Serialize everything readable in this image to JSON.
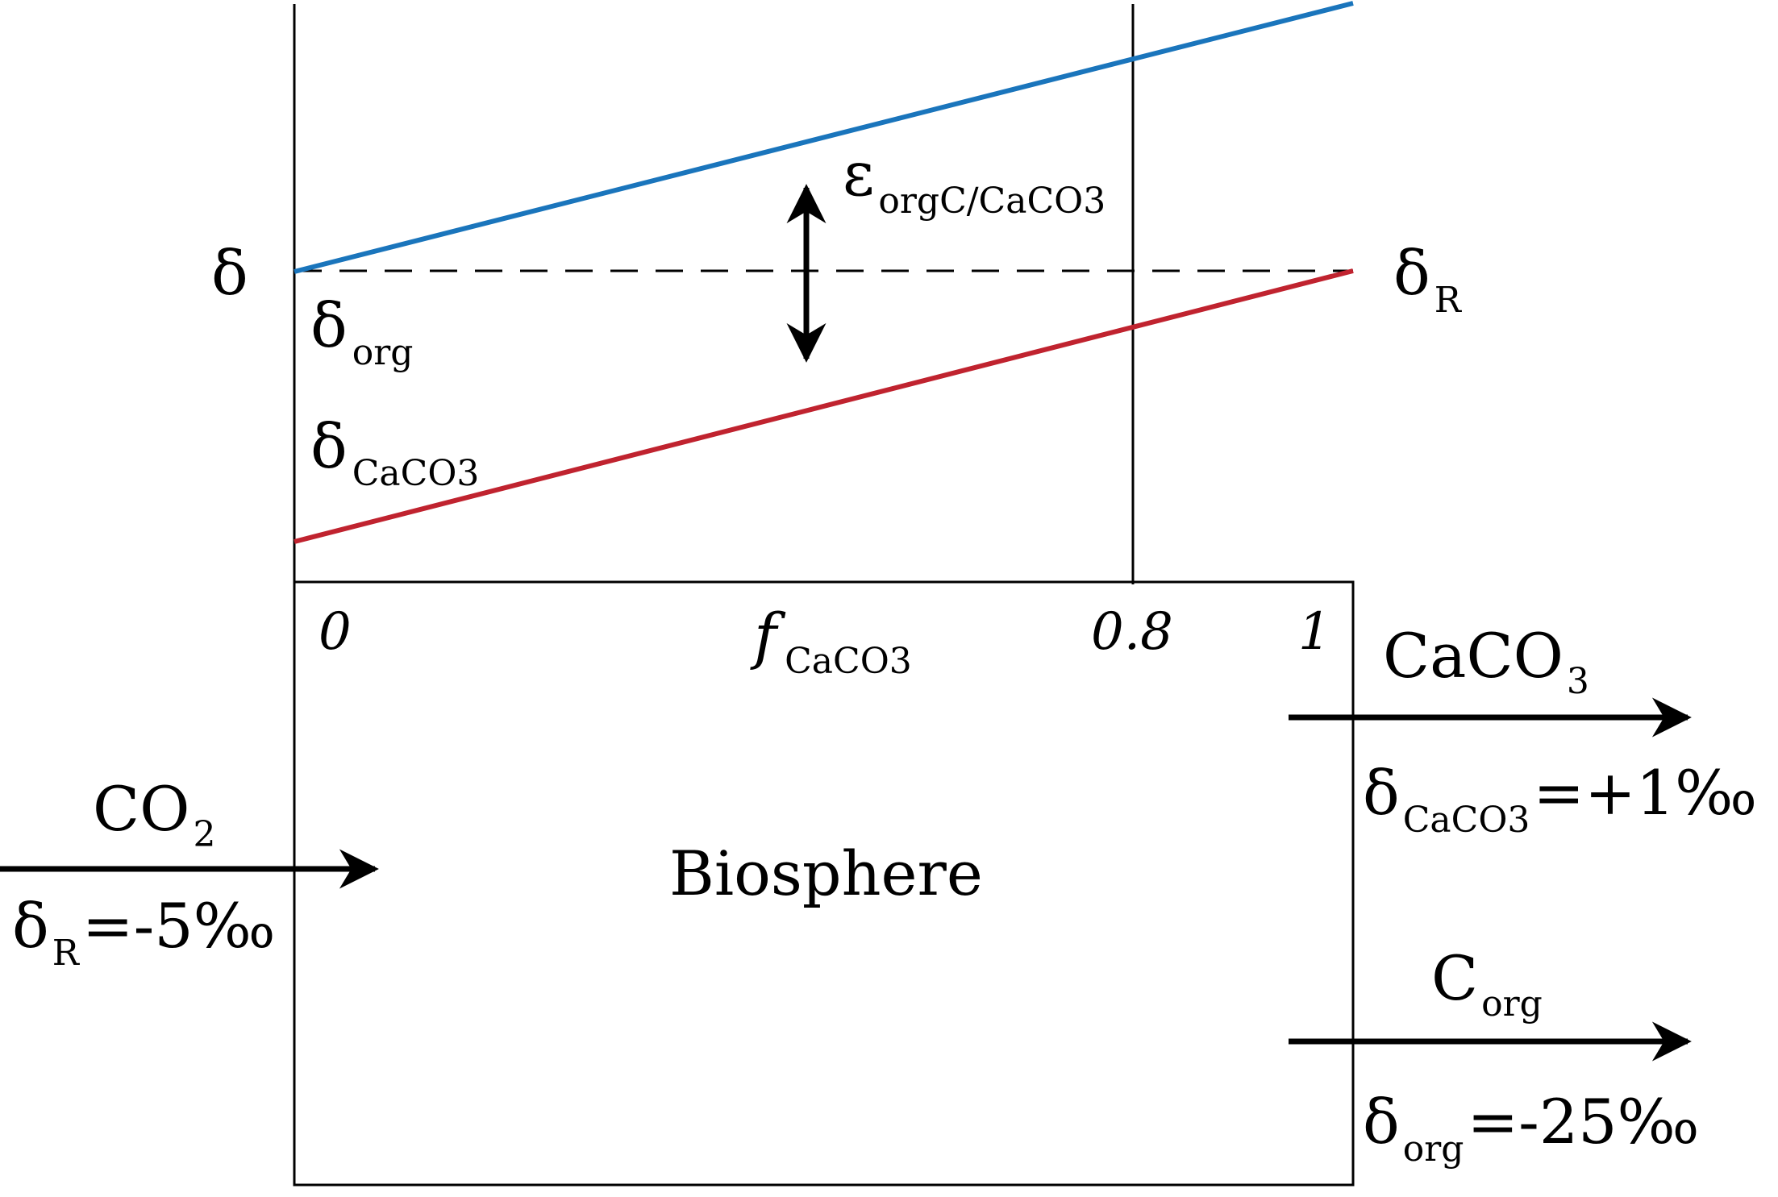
{
  "colors": {
    "organic": "#1a75bc",
    "carbonate": "#c0232f",
    "ink": "#000000"
  },
  "graph": {
    "y_axis_label": "δ",
    "x_axis_label": {
      "main": "f",
      "sub": "CaCO3"
    },
    "x_ticks": [
      "0",
      "0.8",
      "1"
    ],
    "reference_label": {
      "main": "δ",
      "sub": "R"
    },
    "organic_label": {
      "main": "δ",
      "sub": "org"
    },
    "carbonate_label": {
      "main": "δ",
      "sub": "CaCO3"
    },
    "fractionation_label": {
      "main": "ε",
      "sub": "orgC/CaCO3"
    }
  },
  "box": {
    "label": "Biosphere"
  },
  "input_flux": {
    "species": {
      "main": "CO",
      "sub": "2"
    },
    "delta": {
      "main": "δ",
      "sub": "R",
      "value": "=-5‰"
    }
  },
  "output_carbonate": {
    "species": {
      "main": "CaCO",
      "sub": "3"
    },
    "delta": {
      "main": "δ",
      "sub": "CaCO3",
      "value": "=+1‰"
    }
  },
  "output_organic": {
    "species": {
      "main": "C",
      "sub": "org"
    },
    "delta": {
      "main": "δ",
      "sub": "org",
      "value": "=-25‰"
    }
  }
}
